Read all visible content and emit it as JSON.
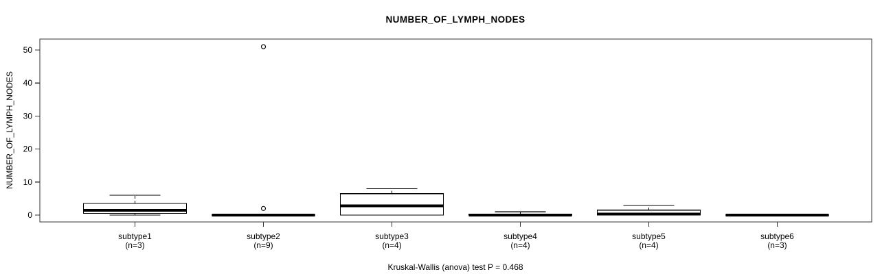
{
  "chart_data": {
    "type": "boxplot",
    "title": "NUMBER_OF_LYMPH_NODES",
    "ylabel": "NUMBER_OF_LYMPH_NODES",
    "xlabel": "",
    "caption": "Kruskal-Wallis (anova) test P = 0.468",
    "test_label": "Kruskal-Wallis (anova) test",
    "p_value": "0.468",
    "ylim": [
      -2,
      54
    ],
    "yticks": [
      0,
      10,
      20,
      30,
      40,
      50
    ],
    "grid": false,
    "legend_position": "none",
    "categories": [
      "subtype1",
      "subtype2",
      "subtype3",
      "subtype4",
      "subtype5",
      "subtype6"
    ],
    "groups": [
      {
        "label": "subtype1",
        "n_label": "(n=3)",
        "n": 3,
        "stats": {
          "min": 0,
          "q1": 0.5,
          "median": 1.5,
          "q3": 3.5,
          "max": 6
        },
        "outliers": []
      },
      {
        "label": "subtype2",
        "n_label": "(n=9)",
        "n": 9,
        "stats": {
          "min": 0,
          "q1": 0,
          "median": 0,
          "q3": 0,
          "max": 0
        },
        "outliers": [
          2,
          51
        ]
      },
      {
        "label": "subtype3",
        "n_label": "(n=4)",
        "n": 4,
        "stats": {
          "min": 0,
          "q1": 0,
          "median": 2.8,
          "q3": 6.5,
          "max": 8
        },
        "outliers": []
      },
      {
        "label": "subtype4",
        "n_label": "(n=4)",
        "n": 4,
        "stats": {
          "min": 0,
          "q1": 0,
          "median": 0,
          "q3": 0.3,
          "max": 1
        },
        "outliers": []
      },
      {
        "label": "subtype5",
        "n_label": "(n=4)",
        "n": 4,
        "stats": {
          "min": 0,
          "q1": 0,
          "median": 0.3,
          "q3": 1.5,
          "max": 3
        },
        "outliers": []
      },
      {
        "label": "subtype6",
        "n_label": "(n=3)",
        "n": 3,
        "stats": {
          "min": 0,
          "q1": 0,
          "median": 0,
          "q3": 0,
          "max": 0
        },
        "outliers": []
      }
    ],
    "colors": {
      "background": "#ffffff",
      "box_fill": "#ffffff",
      "line": "#000000",
      "frame": "#333333",
      "text": "#000000"
    }
  }
}
